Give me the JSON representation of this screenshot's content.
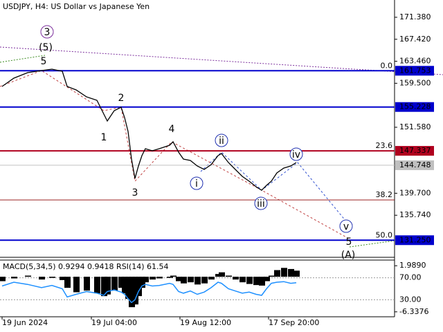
{
  "chart_data": [
    {
      "type": "line",
      "title": "USDJPY, H4:  US Dollar vs Japanese Yen",
      "color": "#000000",
      "x": [
        3,
        20,
        40,
        60,
        75,
        90,
        97,
        110,
        125,
        140,
        150,
        155,
        165,
        175,
        180,
        185,
        190,
        195,
        200,
        205,
        210,
        220,
        230,
        245,
        250,
        258,
        265,
        275,
        285,
        295,
        305,
        315,
        320,
        330,
        340,
        350,
        360,
        370,
        378,
        385,
        392,
        400,
        410,
        420,
        428
      ],
      "values": [
        158.93,
        160.42,
        161.42,
        161.79,
        162.04,
        161.67,
        158.93,
        158.3,
        157.06,
        156.44,
        153.95,
        152.7,
        154.57,
        155.19,
        153.32,
        150.83,
        145.85,
        142.36,
        144.61,
        146.47,
        147.72,
        147.34,
        147.72,
        148.34,
        148.96,
        147.1,
        145.85,
        145.6,
        144.61,
        143.98,
        144.85,
        146.47,
        146.85,
        145.23,
        143.98,
        142.74,
        141.87,
        140.87,
        140.25,
        141.12,
        141.87,
        143.36,
        144.23,
        144.61,
        145.23
      ],
      "xlim": [
        0,
        570
      ],
      "ylim": [
        128.17,
        174.49
      ],
      "xticks": [
        {
          "value": 3,
          "label": "19 Jun 2024"
        },
        {
          "value": 132,
          "label": "19 Jul 04:00"
        },
        {
          "value": 260,
          "label": "19 Aug 12:00"
        },
        {
          "value": 388,
          "label": "17 Sep 20:00"
        }
      ],
      "yticks": [
        {
          "value": 171.38,
          "label": "171.380"
        },
        {
          "value": 167.42,
          "label": "167.420"
        },
        {
          "value": 163.46,
          "label": "163.460"
        },
        {
          "value": 159.5,
          "label": "159.500"
        },
        {
          "value": 151.58,
          "label": "151.580"
        },
        {
          "value": 139.7,
          "label": "139.700"
        },
        {
          "value": 135.74,
          "label": "135.740"
        }
      ],
      "levels": [
        {
          "value": 161.753,
          "label": "161.753",
          "color": "#0000cd"
        },
        {
          "value": 155.228,
          "label": "155.228",
          "color": "#0000cd"
        },
        {
          "value": 147.337,
          "label": "147.337",
          "color": "#b0001e"
        },
        {
          "value": 144.748,
          "label": "144.748",
          "color": "#c0c0c0"
        },
        {
          "value": 131.25,
          "label": "131.250",
          "color": "#0000cd"
        }
      ],
      "fibonacci": [
        {
          "label": "0.0",
          "value": 161.753
        },
        {
          "label": "23.6",
          "value": 147.337
        },
        {
          "label": "38.2",
          "value": 138.5
        },
        {
          "label": "50.0",
          "value": 131.25
        }
      ],
      "annotations": [
        {
          "text": "3",
          "color": "#7b2d9c",
          "circled": true
        },
        {
          "text": "(5)",
          "color": "#3a8a1e",
          "circled": false
        },
        {
          "text": "5",
          "color": "#a0302a",
          "circled": false
        },
        {
          "text": "1",
          "color": "#a0302a",
          "circled": false
        },
        {
          "text": "2",
          "color": "#a0302a",
          "circled": false
        },
        {
          "text": "3",
          "color": "#a0302a",
          "circled": false
        },
        {
          "text": "4",
          "color": "#a0302a",
          "circled": false
        },
        {
          "text": "i",
          "color": "#1e2fb0",
          "circled": true
        },
        {
          "text": "ii",
          "color": "#1e2fb0",
          "circled": true
        },
        {
          "text": "iii",
          "color": "#1e2fb0",
          "circled": true
        },
        {
          "text": "iv",
          "color": "#1e2fb0",
          "circled": true
        },
        {
          "text": "v",
          "color": "#1e2fb0",
          "circled": true
        },
        {
          "text": "5",
          "color": "#a0302a",
          "circled": false
        },
        {
          "text": "(A)",
          "color": "#3a8a1e",
          "circled": false
        }
      ]
    },
    {
      "type": "bar",
      "macd_label": "MACD(5,34,5)",
      "macd_readout": [
        0.9294,
        0.9418
      ],
      "rsi_label": "RSI(14)",
      "rsi_readout": 61.54,
      "x": [
        3,
        20,
        40,
        60,
        75,
        90,
        97,
        110,
        125,
        140,
        150,
        155,
        165,
        175,
        180,
        185,
        190,
        195,
        200,
        205,
        210,
        220,
        230,
        245,
        250,
        258,
        265,
        275,
        285,
        295,
        305,
        315,
        320,
        330,
        340,
        350,
        360,
        370,
        378,
        385,
        392,
        400,
        410,
        420,
        428
      ],
      "xlim": [
        0,
        570
      ],
      "ylim": [
        -7.234,
        3.014
      ],
      "y2lim": [
        -0.97,
        102.26
      ],
      "yticks": [
        {
          "value": 1.989,
          "label": "1.9890"
        },
        {
          "value": -6.3376,
          "label": "-6.3376"
        }
      ],
      "y2ticks": [
        {
          "value": 70,
          "label": "70.00"
        },
        {
          "value": 30,
          "label": "30.00"
        }
      ],
      "series": [
        {
          "name": "MACD(5,34,5)",
          "color": "#000000",
          "values": [
            -0.8,
            -0.3,
            0.2,
            -0.5,
            -0.2,
            -0.6,
            -2.0,
            -2.8,
            -2.5,
            -3.0,
            -3.5,
            -3.2,
            -2.5,
            -2.0,
            -3.0,
            -4.0,
            -5.5,
            -5.0,
            -3.5,
            -2.0,
            -1.0,
            -0.5,
            -0.3,
            -0.2,
            0.2,
            -0.8,
            -1.2,
            -1.0,
            -1.4,
            -1.2,
            -0.5,
            0.5,
            0.8,
            0.2,
            -0.5,
            -1.0,
            -1.3,
            -1.5,
            -1.6,
            -0.8,
            0.2,
            1.2,
            1.6,
            1.4,
            1.1
          ]
        },
        {
          "name": "RSI(14)",
          "color": "#1e90ff",
          "axis": "y2",
          "values": [
            55,
            62,
            58,
            52,
            56,
            50,
            35,
            40,
            45,
            42,
            38,
            45,
            48,
            44,
            40,
            32,
            25,
            30,
            45,
            55,
            58,
            55,
            56,
            60,
            58,
            45,
            42,
            46,
            40,
            44,
            52,
            62,
            60,
            50,
            46,
            42,
            44,
            40,
            38,
            50,
            60,
            62,
            63,
            60,
            61
          ]
        }
      ]
    }
  ]
}
